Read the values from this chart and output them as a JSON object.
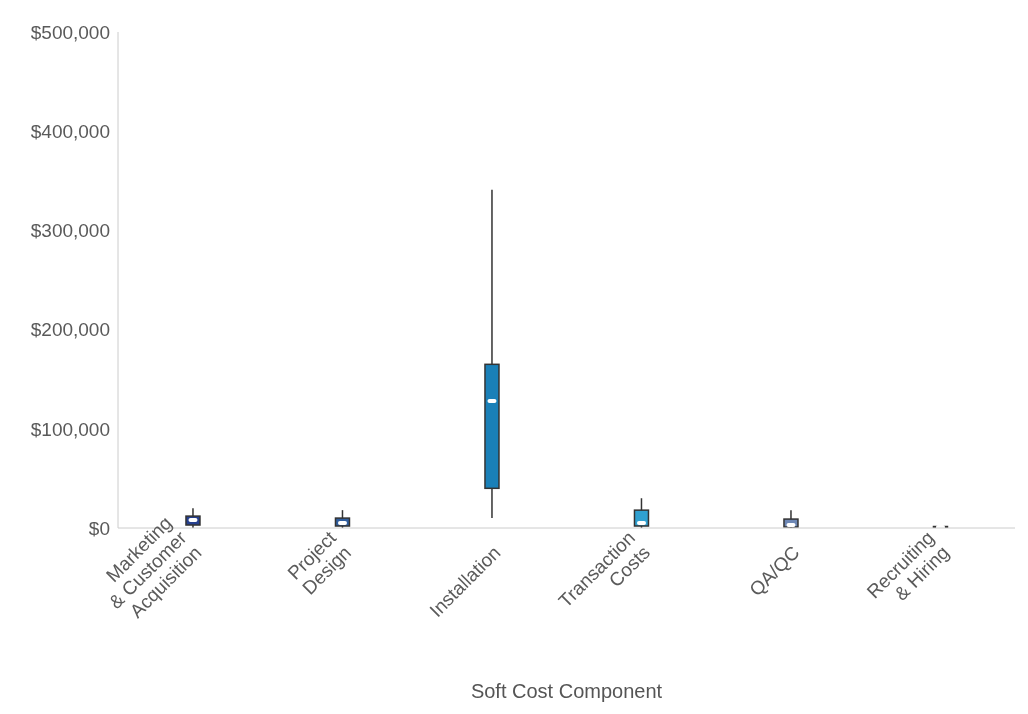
{
  "chart_data": {
    "type": "box",
    "xlabel": "Soft Cost Component",
    "categories": [
      "Marketing & Customer Acquisition",
      "Project Design",
      "Installation",
      "Transaction Costs",
      "QA/QC",
      "Recruiting & Hiring"
    ],
    "colors": [
      "#253f8e",
      "#2f5d9e",
      "#1a80b8",
      "#30a0d0",
      "#6d87b5",
      "#8a9cc4"
    ],
    "boxes": [
      {
        "low": 0,
        "q1": 3000,
        "median": 8000,
        "q3": 12000,
        "high": 20000
      },
      {
        "low": 0,
        "q1": 2000,
        "median": 5000,
        "q3": 10000,
        "high": 18000
      },
      {
        "low": 10000,
        "q1": 40000,
        "median": 128000,
        "q3": 165000,
        "high": 341000
      },
      {
        "low": 0,
        "q1": 2000,
        "median": 5000,
        "q3": 18000,
        "high": 30000
      },
      {
        "low": 0,
        "q1": 1000,
        "median": 3000,
        "q3": 9000,
        "high": 18000
      },
      {
        "low": 0,
        "q1": 500,
        "median": 1000,
        "q3": 1500,
        "high": 2000
      }
    ],
    "ylim": [
      0,
      500000
    ],
    "yticks": [
      {
        "value": 0,
        "label": "$0"
      },
      {
        "value": 100000,
        "label": "$100,000"
      },
      {
        "value": 200000,
        "label": "$200,000"
      },
      {
        "value": 300000,
        "label": "$300,000"
      },
      {
        "value": 400000,
        "label": "$400,000"
      },
      {
        "value": 500000,
        "label": "$500,000"
      }
    ],
    "grid": false
  }
}
